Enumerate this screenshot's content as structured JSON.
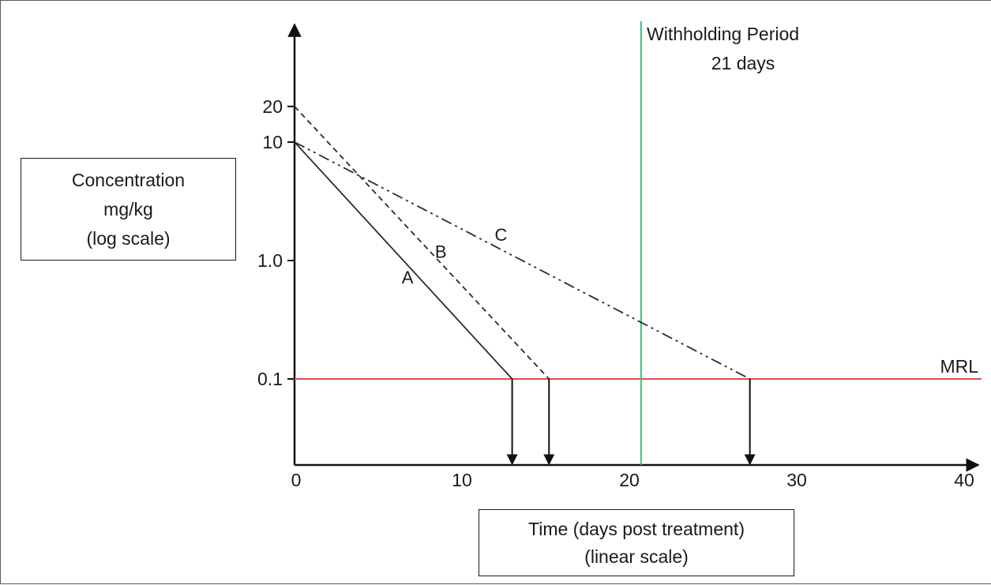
{
  "chart_data": {
    "type": "line",
    "title": "",
    "ylabel_lines": [
      "Concentration",
      "mg/kg",
      "(log scale)"
    ],
    "xlabel_lines": [
      "Time (days post treatment)",
      "(linear scale)"
    ],
    "x_ticks": [
      "0",
      "10",
      "20",
      "30",
      "40"
    ],
    "y_ticks": [
      "20",
      "10",
      "1.0",
      "0.1"
    ],
    "xlim": [
      0,
      40
    ],
    "y_scale": "log",
    "series": [
      {
        "name": "A",
        "style": "solid",
        "color": "#2b2b2b",
        "x": [
          0,
          13.0
        ],
        "y": [
          10,
          0.1
        ]
      },
      {
        "name": "B",
        "style": "dashed",
        "color": "#2b2b2b",
        "x": [
          0,
          15.2
        ],
        "y": [
          20,
          0.1
        ]
      },
      {
        "name": "C",
        "style": "dash-dot-dot",
        "color": "#2b2b2b",
        "x": [
          0,
          27.2
        ],
        "y": [
          10,
          0.1
        ]
      }
    ],
    "crossing_arrows_x": [
      13.0,
      15.2,
      27.2
    ],
    "mrl": {
      "label": "MRL",
      "value": 0.1,
      "color": "#e8474c"
    },
    "withholding": {
      "label_line1": "Withholding Period",
      "label_line2": "21 days",
      "x": 20.7,
      "color": "#3cc07a"
    },
    "grid": false
  }
}
